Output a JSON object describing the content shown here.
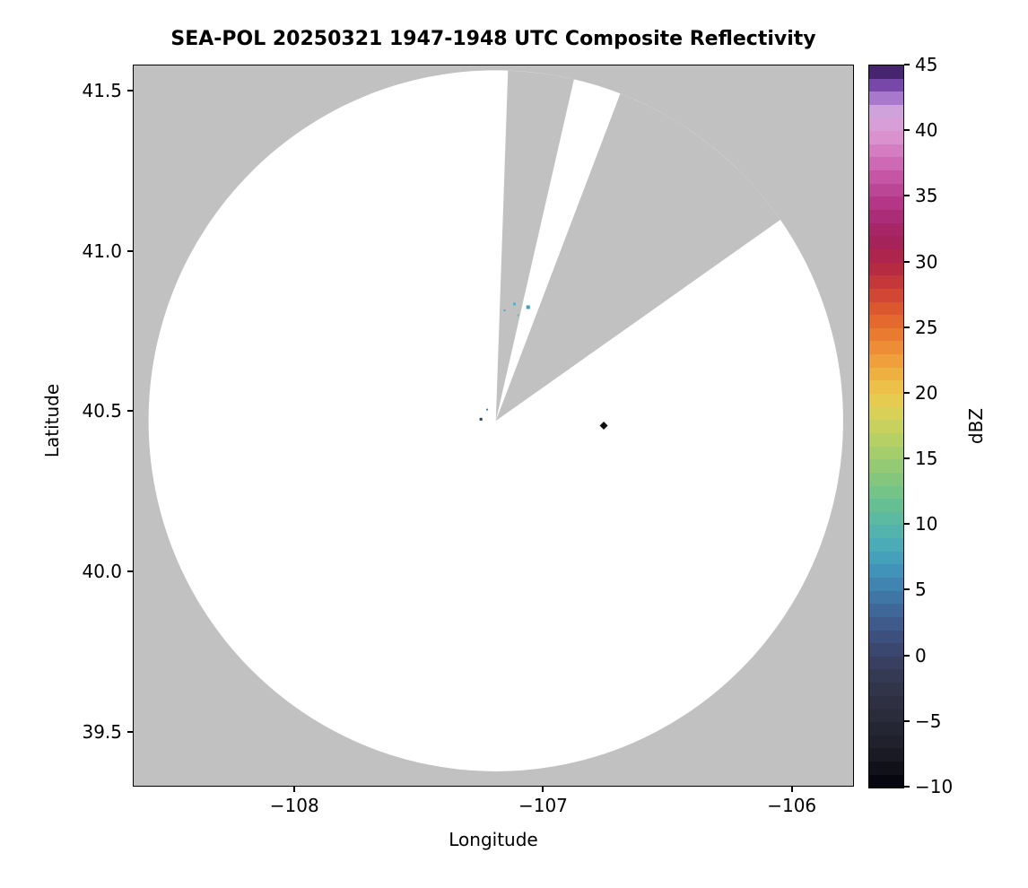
{
  "chart_data": {
    "type": "heatmap",
    "subtype": "radar_ppi_composite_reflectivity",
    "title": "SEA-POL 20250321 1947-1948 UTC Composite Reflectivity",
    "xlabel": "Longitude",
    "ylabel": "Latitude",
    "xlim": [
      -108.65,
      -105.75
    ],
    "ylim": [
      39.33,
      41.58
    ],
    "xticks": [
      {
        "value": -108,
        "label": "−108"
      },
      {
        "value": -107,
        "label": "−107"
      },
      {
        "value": -106,
        "label": "−106"
      }
    ],
    "yticks": [
      {
        "value": 39.5,
        "label": "39.5"
      },
      {
        "value": 40.0,
        "label": "40.0"
      },
      {
        "value": 40.5,
        "label": "40.5"
      },
      {
        "value": 41.0,
        "label": "41.0"
      },
      {
        "value": 41.5,
        "label": "41.5"
      }
    ],
    "radar_site": {
      "lon": -107.19,
      "lat": 40.47
    },
    "coverage_ellipse": {
      "rx_deg_lon": 1.4,
      "ry_deg_lat": 1.095
    },
    "blocked_sectors_azimuth_deg": [
      {
        "from": 2,
        "to": 13
      },
      {
        "from": 21,
        "to": 55
      }
    ],
    "colors": {
      "masked": "#c1c1c1",
      "coverage": "#ffffff",
      "figure_bg": "#ffffff",
      "text": "#000000"
    },
    "echoes": [
      {
        "lon": -107.115,
        "lat": 40.835,
        "dbz": 7,
        "color": "#4fb3c8",
        "size": 3,
        "shape": "rect"
      },
      {
        "lon": -107.06,
        "lat": 40.825,
        "dbz": 5,
        "color": "#3e9fc4",
        "size": 4,
        "shape": "rect"
      },
      {
        "lon": -107.1,
        "lat": 40.8,
        "dbz": 9,
        "color": "#5fbfae",
        "size": 2,
        "shape": "rect"
      },
      {
        "lon": -107.155,
        "lat": 40.815,
        "dbz": 6,
        "color": "#4aa8c0",
        "size": 2,
        "shape": "rect"
      },
      {
        "lon": -107.25,
        "lat": 40.475,
        "dbz": -4,
        "color": "#2e3a4e",
        "size": 3,
        "shape": "rect"
      },
      {
        "lon": -107.225,
        "lat": 40.505,
        "dbz": 4,
        "color": "#3f7fb0",
        "size": 2,
        "shape": "rect"
      },
      {
        "lon": -106.755,
        "lat": 40.455,
        "dbz": -10,
        "color": "#0d0d14",
        "size": 9,
        "shape": "diamond"
      }
    ],
    "colorbar": {
      "label": "dBZ",
      "min": -10,
      "max": 45,
      "segments": 55,
      "ticks": [
        {
          "value": 45,
          "label": "45"
        },
        {
          "value": 40,
          "label": "40"
        },
        {
          "value": 35,
          "label": "35"
        },
        {
          "value": 30,
          "label": "30"
        },
        {
          "value": 25,
          "label": "25"
        },
        {
          "value": 20,
          "label": "20"
        },
        {
          "value": 15,
          "label": "15"
        },
        {
          "value": 10,
          "label": "10"
        },
        {
          "value": 5,
          "label": "5"
        },
        {
          "value": 0,
          "label": "0"
        },
        {
          "value": -5,
          "label": "−5"
        },
        {
          "value": -10,
          "label": "−10"
        }
      ],
      "stops": [
        [
          -10,
          "#02020a"
        ],
        [
          -8,
          "#16161e"
        ],
        [
          -6,
          "#232430"
        ],
        [
          -4,
          "#2c2d3e"
        ],
        [
          -2,
          "#33374e"
        ],
        [
          0,
          "#3a4266"
        ],
        [
          2,
          "#3e5484"
        ],
        [
          4,
          "#3f6e9e"
        ],
        [
          6,
          "#408cb8"
        ],
        [
          8,
          "#47a8bc"
        ],
        [
          10,
          "#55b8a8"
        ],
        [
          12,
          "#6cc18c"
        ],
        [
          14,
          "#8cc878"
        ],
        [
          16,
          "#aecf68"
        ],
        [
          18,
          "#d2d25a"
        ],
        [
          20,
          "#ecc84e"
        ],
        [
          22,
          "#f0a83e"
        ],
        [
          24,
          "#ec8432"
        ],
        [
          26,
          "#e0602c"
        ],
        [
          28,
          "#cc3e36"
        ],
        [
          30,
          "#b02446"
        ],
        [
          32,
          "#a32260"
        ],
        [
          34,
          "#ae307e"
        ],
        [
          36,
          "#c04d9e"
        ],
        [
          38,
          "#d272bc"
        ],
        [
          40,
          "#dc9cd4"
        ],
        [
          41.5,
          "#d0a2dc"
        ],
        [
          42.5,
          "#a878cc"
        ],
        [
          43.5,
          "#7848a8"
        ],
        [
          44.5,
          "#46246e"
        ],
        [
          45,
          "#2a123e"
        ]
      ]
    }
  }
}
